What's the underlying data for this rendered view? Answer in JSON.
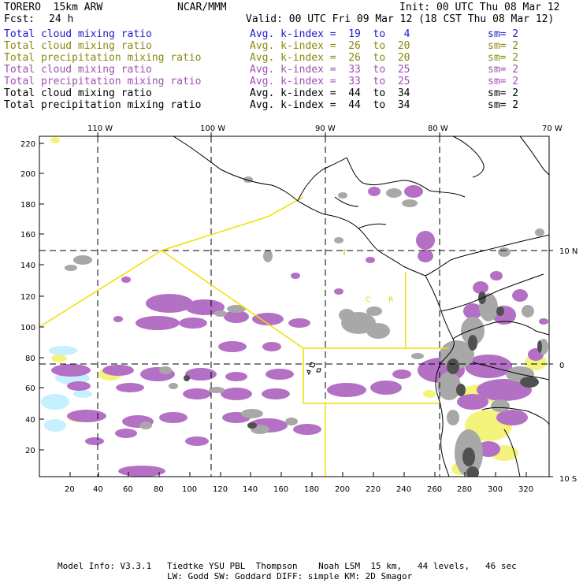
{
  "header": {
    "model": "TORERO  15km ARW",
    "org": "NCAR/MMM",
    "init": "Init: 00 UTC Thu 08 Mar 12",
    "fcst_label": "Fcst:",
    "fcst_value": "24 h",
    "valid": "Valid: 00 UTC Fri 09 Mar 12 (18 CST Thu 08 Mar 12)"
  },
  "legend": [
    {
      "field": "Total cloud mixing ratio",
      "index": "Avg. k-index =  19  to   4",
      "sm": "sm= 2",
      "color": "#1a1acc"
    },
    {
      "field": "Total cloud mixing ratio",
      "index": "Avg. k-index =  26  to  20",
      "sm": "sm= 2",
      "color": "#8a8a10"
    },
    {
      "field": "Total precipitation mixing ratio",
      "index": "Avg. k-index =  26  to  20",
      "sm": "sm= 2",
      "color": "#8a8a10"
    },
    {
      "field": "Total cloud mixing ratio",
      "index": "Avg. k-index =  33  to  25",
      "sm": "sm= 2",
      "color": "#a050b0"
    },
    {
      "field": "Total precipitation mixing ratio",
      "index": "Avg. k-index =  33  to  25",
      "sm": "sm= 2",
      "color": "#a050b0"
    },
    {
      "field": "Total cloud mixing ratio",
      "index": "Avg. k-index =  44  to  34",
      "sm": "sm= 2",
      "color": "#000000"
    },
    {
      "field": "Total precipitation mixing ratio",
      "index": "Avg. k-index =  44  to  34",
      "sm": "sm= 2",
      "color": "#000000"
    }
  ],
  "map": {
    "top_lon_labels": [
      "110 W",
      "100 W",
      "90 W",
      "80 W",
      "70 W"
    ],
    "right_lat_labels": [
      "10 N",
      "0",
      "10 S"
    ],
    "left_ticks": [
      "220",
      "200",
      "180",
      "160",
      "140",
      "120",
      "100",
      "80",
      "60",
      "40",
      "20"
    ],
    "bottom_ticks": [
      "20",
      "40",
      "60",
      "80",
      "100",
      "120",
      "140",
      "160",
      "180",
      "200",
      "220",
      "240",
      "260",
      "280",
      "300",
      "320"
    ],
    "region_labels": [
      "C",
      "R"
    ],
    "colors": {
      "cloud_purple": "#b070c0",
      "cloud_gray": "#a8a8a8",
      "cloud_dark": "#505050",
      "precip_yellow": "#f0f070",
      "cyan": "#c0f0ff",
      "box_yellow": "#f0e000"
    }
  },
  "footer": {
    "line1": "Model Info: V3.3.1   Tiedtke YSU PBL  Thompson    Noah LSM  15 km,   44 levels,   46 sec",
    "line2": "LW: Godd SW: Goddard DIFF: simple KM: 2D Smagor"
  }
}
